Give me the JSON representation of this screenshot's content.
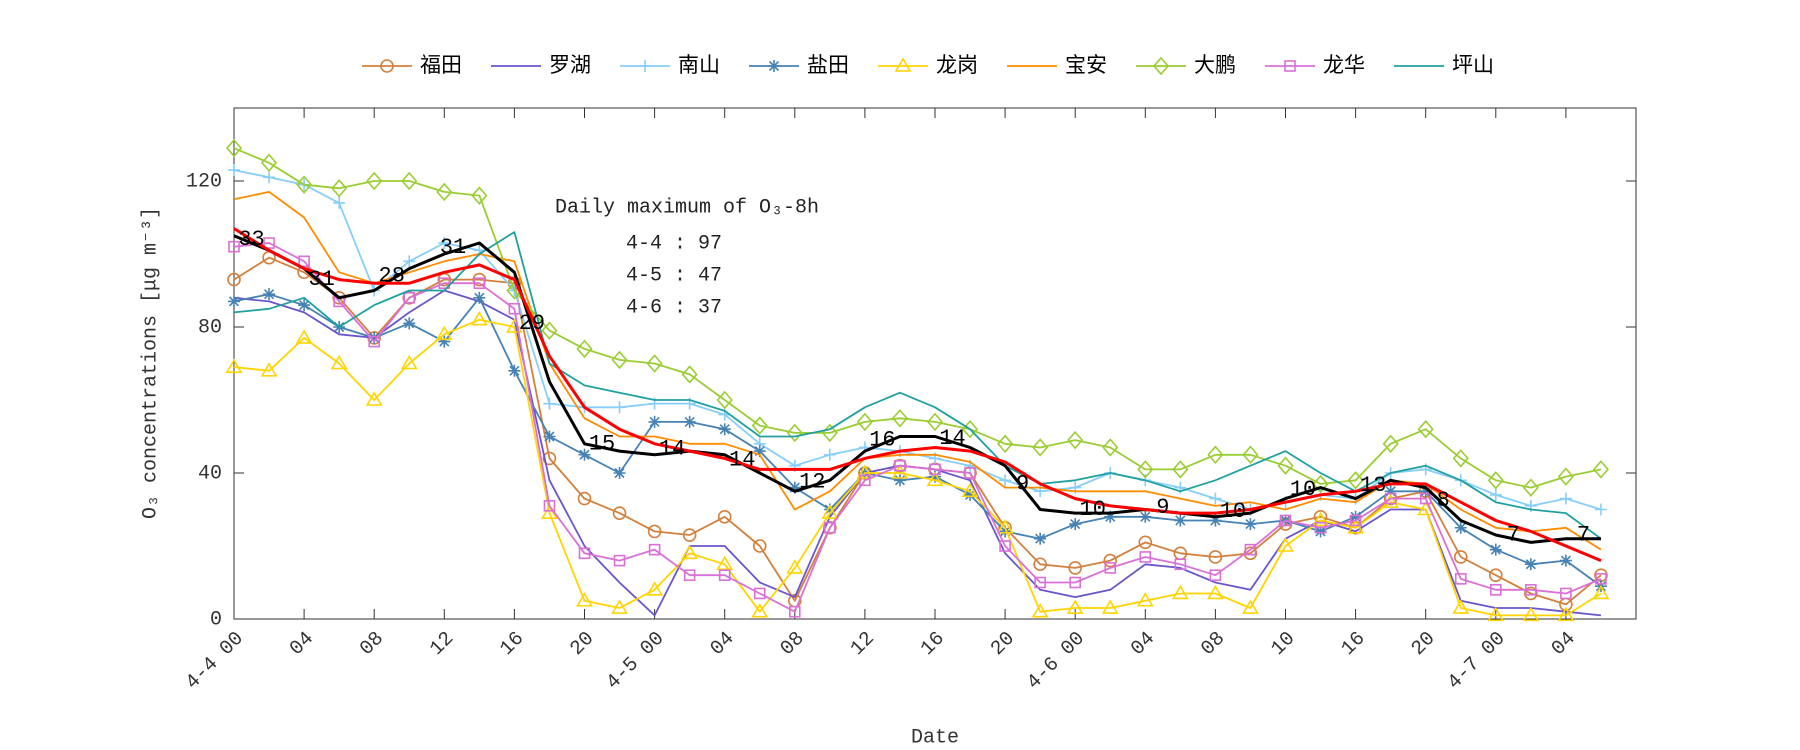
{
  "chart_data": {
    "type": "line",
    "xlabel": "Date",
    "ylabel": "O₃ concentrations [μg m⁻³]",
    "x": [
      0,
      2,
      4,
      6,
      8,
      10,
      12,
      14,
      16,
      18,
      20,
      22,
      24,
      26,
      28,
      30,
      32,
      34,
      36,
      38,
      40,
      42,
      44,
      46,
      48,
      50,
      52,
      54,
      56,
      58,
      60,
      62,
      64,
      66,
      68,
      70,
      72,
      74,
      76,
      78
    ],
    "xlim": [
      0,
      80
    ],
    "xticks": [
      {
        "value": 0,
        "label": "4-4 00"
      },
      {
        "value": 4,
        "label": "04"
      },
      {
        "value": 8,
        "label": "08"
      },
      12,
      16,
      20,
      {
        "value": 24,
        "label": "4-5 00"
      },
      {
        "value": 28,
        "label": "04"
      },
      {
        "value": 32,
        "label": "08"
      },
      {
        "value": 36,
        "label": "12"
      },
      {
        "value": 40,
        "label": "16"
      },
      {
        "value": 44,
        "label": "20"
      },
      {
        "value": 48,
        "label": "4-6 00"
      },
      {
        "value": 52,
        "label": "04"
      },
      {
        "value": 56,
        "label": "08"
      },
      {
        "value": 60,
        "label": "10"
      },
      {
        "value": 64,
        "label": "16"
      },
      {
        "value": 68,
        "label": "20"
      },
      {
        "value": 72,
        "label": "4-7 00"
      },
      {
        "value": 76,
        "label": "04"
      }
    ],
    "ylim": [
      0,
      140
    ],
    "yticks": [
      0,
      40,
      80,
      120
    ],
    "grid": false,
    "annotation": [
      "Daily maximum of O₃-8h",
      "4-4 : 97",
      "4-5 : 47",
      "4-6 : 37"
    ],
    "series": [
      {
        "name": "福田",
        "color": "#d2803c",
        "marker": "circle",
        "values": [
          93,
          99,
          95,
          88,
          77,
          88,
          93,
          93,
          92,
          44,
          33,
          29,
          24,
          23,
          28,
          20,
          5,
          25,
          40,
          42,
          41,
          40,
          25,
          15,
          14,
          16,
          21,
          18,
          17,
          18,
          26,
          28,
          25,
          33,
          35,
          17,
          12,
          7,
          4,
          12
        ]
      },
      {
        "name": "罗湖",
        "color": "#6a55cd",
        "marker": "none",
        "values": [
          88,
          87,
          84,
          78,
          77,
          84,
          90,
          87,
          82,
          38,
          20,
          10,
          1,
          20,
          20,
          10,
          6,
          28,
          40,
          42,
          41,
          38,
          18,
          8,
          6,
          8,
          15,
          14,
          10,
          8,
          22,
          27,
          24,
          30,
          30,
          5,
          3,
          3,
          2,
          1
        ]
      },
      {
        "name": "南山",
        "color": "#87cefa",
        "marker": "plus",
        "values": [
          123,
          121,
          119,
          114,
          90,
          98,
          103,
          101,
          90,
          59,
          58,
          58,
          59,
          59,
          56,
          48,
          42,
          45,
          47,
          46,
          44,
          42,
          38,
          35,
          36,
          40,
          38,
          36,
          33,
          30,
          32,
          34,
          33,
          40,
          41,
          38,
          34,
          31,
          33,
          30
        ]
      },
      {
        "name": "盐田",
        "color": "#4682b4",
        "marker": "asterisk",
        "values": [
          87,
          89,
          86,
          80,
          77,
          81,
          76,
          88,
          68,
          50,
          45,
          40,
          54,
          54,
          52,
          46,
          36,
          30,
          40,
          38,
          39,
          34,
          24,
          22,
          26,
          28,
          28,
          27,
          27,
          26,
          27,
          24,
          28,
          35,
          35,
          25,
          19,
          15,
          16,
          9
        ]
      },
      {
        "name": "龙岗",
        "color": "#ffd400",
        "marker": "triangle",
        "values": [
          69,
          68,
          77,
          70,
          60,
          70,
          78,
          82,
          80,
          29,
          5,
          3,
          8,
          18,
          15,
          2,
          14,
          29,
          40,
          40,
          38,
          35,
          25,
          2,
          3,
          3,
          5,
          7,
          7,
          3,
          20,
          27,
          25,
          32,
          30,
          3,
          1,
          1,
          1,
          7
        ]
      },
      {
        "name": "宝安",
        "color": "#ff8c00",
        "marker": "none",
        "values": [
          115,
          117,
          110,
          95,
          92,
          95,
          98,
          100,
          98,
          70,
          55,
          50,
          50,
          48,
          48,
          45,
          30,
          35,
          44,
          45,
          45,
          43,
          36,
          36,
          35,
          35,
          35,
          33,
          31,
          32,
          30,
          33,
          32,
          38,
          37,
          30,
          25,
          24,
          25,
          19
        ]
      },
      {
        "name": "大鹏",
        "color": "#9acd32",
        "marker": "diamond",
        "values": [
          129,
          125,
          119,
          118,
          120,
          120,
          117,
          116,
          90,
          79,
          74,
          71,
          70,
          67,
          60,
          53,
          51,
          51,
          54,
          55,
          54,
          52,
          48,
          47,
          49,
          47,
          41,
          41,
          45,
          45,
          42,
          37,
          38,
          48,
          52,
          44,
          38,
          36,
          39,
          41
        ]
      },
      {
        "name": "龙华",
        "color": "#da70d6",
        "marker": "square",
        "values": [
          102,
          103,
          98,
          87,
          76,
          88,
          92,
          92,
          85,
          31,
          18,
          16,
          19,
          12,
          12,
          7,
          2,
          25,
          38,
          42,
          41,
          40,
          20,
          10,
          10,
          14,
          17,
          15,
          12,
          19,
          27,
          25,
          27,
          33,
          33,
          11,
          8,
          8,
          7,
          11
        ]
      },
      {
        "name": "坪山",
        "color": "#20a0a0",
        "marker": "none",
        "values": [
          84,
          85,
          88,
          80,
          86,
          90,
          90,
          100,
          106,
          70,
          64,
          62,
          60,
          60,
          57,
          50,
          50,
          52,
          58,
          62,
          58,
          52,
          42,
          37,
          38,
          40,
          38,
          35,
          38,
          42,
          46,
          40,
          35,
          40,
          42,
          38,
          32,
          30,
          29,
          22
        ]
      },
      {
        "color": "#000000",
        "marker": "none",
        "width": 3,
        "values": [
          105,
          101,
          96,
          88,
          90,
          96,
          100,
          103,
          95,
          65,
          48,
          46,
          45,
          46,
          45,
          40,
          35,
          38,
          46,
          50,
          50,
          47,
          42,
          30,
          29,
          29,
          30,
          29,
          28,
          29,
          33,
          36,
          33,
          38,
          36,
          27,
          23,
          21,
          22,
          22
        ]
      },
      {
        "color": "#ff0000",
        "marker": "none",
        "width": 3,
        "values": [
          107,
          101,
          96,
          93,
          92,
          92,
          95,
          97,
          93,
          72,
          58,
          52,
          48,
          46,
          44,
          41,
          41,
          41,
          44,
          46,
          47,
          46,
          43,
          37,
          33,
          31,
          30,
          29,
          29,
          30,
          32,
          34,
          35,
          37,
          37,
          32,
          27,
          24,
          20,
          16
        ]
      }
    ],
    "point_labels": {
      "series": 9,
      "x": [
        1,
        5,
        9,
        12.5,
        17,
        21,
        25,
        29,
        33,
        37,
        41,
        45,
        49,
        53,
        57,
        61,
        65,
        69,
        73,
        77
      ],
      "labels": [
        "33",
        "31",
        "28",
        "31",
        "29",
        "15",
        "14",
        "14",
        "12",
        "16",
        "14",
        "9",
        "10",
        "9",
        "10",
        "10",
        "13",
        "8",
        "7",
        "7"
      ]
    }
  }
}
